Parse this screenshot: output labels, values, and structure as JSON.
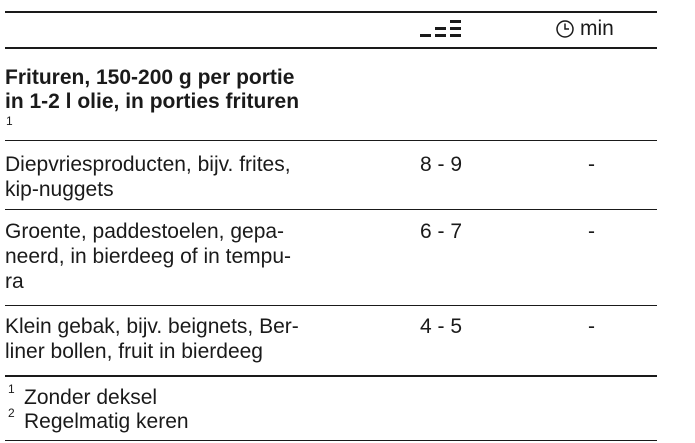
{
  "table": {
    "header": {
      "time_unit": "min"
    },
    "section": {
      "title_lines": [
        "Frituren, 150-200 g per portie",
        "in 1-2 l olie, in porties frituren"
      ],
      "footnote_ref": "1"
    },
    "rows": [
      {
        "dish_lines": [
          "Diepvriesproducten, bijv. frites,",
          "kip-nuggets"
        ],
        "level": "8 - 9",
        "time": "-"
      },
      {
        "dish_lines": [
          "Groente, paddestoelen, gepa-",
          "neerd, in bierdeeg of in tempu-",
          "ra"
        ],
        "level": "6 - 7",
        "time": "-"
      },
      {
        "dish_lines": [
          "Klein gebak, bijv. beignets, Ber-",
          "liner bollen, fruit in bierdeeg"
        ],
        "level": "4 - 5",
        "time": "-"
      }
    ],
    "footnotes": [
      {
        "mark": "1",
        "text": "Zonder deksel"
      },
      {
        "mark": "2",
        "text": "Regelmatig keren"
      }
    ]
  }
}
